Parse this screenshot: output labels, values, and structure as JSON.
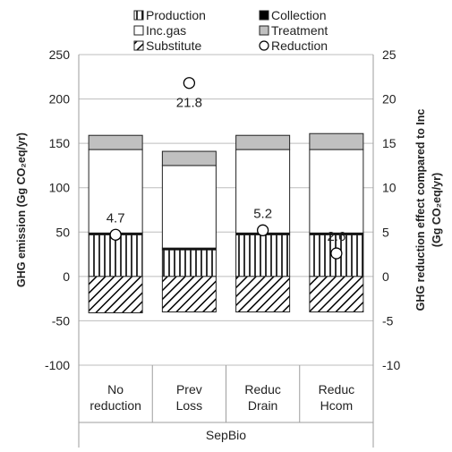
{
  "chart_data": {
    "type": "bar",
    "stacked": true,
    "categories": [
      [
        "No",
        "reduction"
      ],
      [
        "Prev",
        "Loss"
      ],
      [
        "Reduc",
        "Drain"
      ],
      [
        "Reduc",
        "Hcom"
      ]
    ],
    "group_label": "SepBio",
    "series": [
      {
        "name": "Production",
        "pattern": "vertical-lines",
        "values": [
          47,
          30,
          47,
          47
        ]
      },
      {
        "name": "Collection",
        "pattern": "solid-black",
        "values": [
          2,
          2,
          2,
          2
        ]
      },
      {
        "name": "Inc.gas",
        "pattern": "white",
        "values": [
          94,
          93,
          94,
          94
        ]
      },
      {
        "name": "Treatment",
        "pattern": "solid-gray",
        "values": [
          16,
          16,
          16,
          18
        ]
      },
      {
        "name": "Substitute",
        "pattern": "diagonal-hatch",
        "values": [
          -41,
          -40,
          -40,
          -40
        ]
      }
    ],
    "reduction": {
      "name": "Reduction",
      "axis": "right",
      "values": [
        4.7,
        21.8,
        5.2,
        2.6
      ],
      "labels": [
        "4.7",
        "21.8",
        "5.2",
        "2.6"
      ]
    },
    "ylabel_left": "GHG emission (Gg CO₂eq/yr)",
    "ylabel_right_line1": "GHG reduction effect compared to Inc",
    "ylabel_right_line2": "(Gg CO₂eq/yr)",
    "ylim_left": [
      -100,
      250
    ],
    "yticks_left": [
      -100,
      -50,
      0,
      50,
      100,
      150,
      200,
      250
    ],
    "ylim_right": [
      -10,
      25
    ],
    "yticks_right": [
      -10,
      -5,
      0,
      5,
      10,
      15,
      20,
      25
    ],
    "grid": true,
    "legend_position": "top",
    "colors": {
      "treatment": "#c0c0c0",
      "collection": "#000000",
      "grid": "#bdbdbd",
      "axis": "#9e9e9e"
    }
  }
}
